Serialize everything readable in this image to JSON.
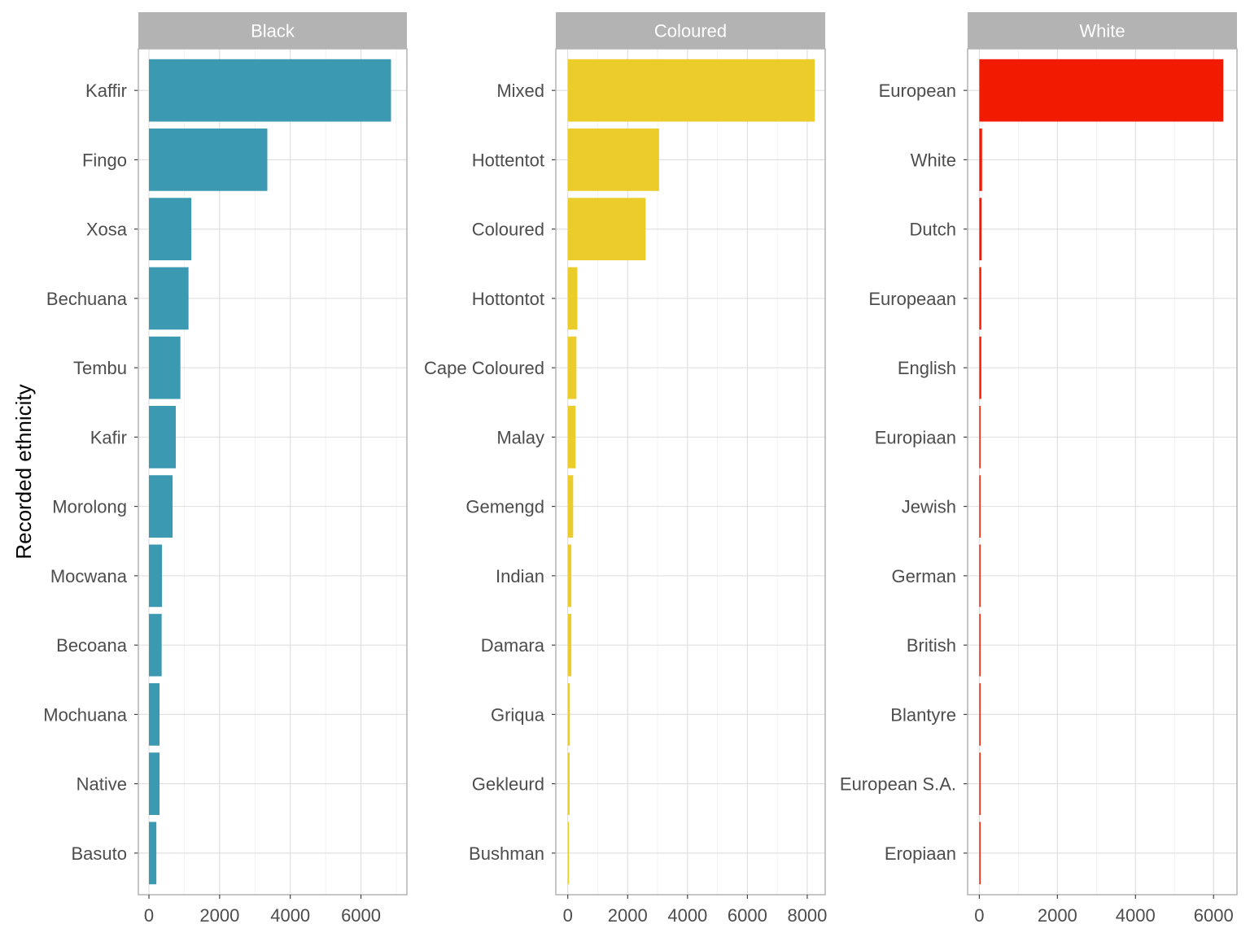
{
  "chart_data": {
    "type": "bar",
    "orientation": "horizontal",
    "ylabel": "Recorded ethnicity",
    "xlabel": "",
    "grid": true,
    "facets": [
      {
        "name": "Black",
        "color": "#3b9ab2",
        "xlim": [
          -300,
          7300
        ],
        "xticks": [
          0,
          2000,
          4000,
          6000
        ],
        "categories": [
          "Kaffir",
          "Fingo",
          "Xosa",
          "Bechuana",
          "Tembu",
          "Kafir",
          "Morolong",
          "Mocwana",
          "Becoana",
          "Mochuana",
          "Native",
          "Basuto"
        ],
        "values": [
          6850,
          3350,
          1200,
          1120,
          890,
          760,
          670,
          370,
          360,
          300,
          300,
          210
        ]
      },
      {
        "name": "Coloured",
        "color": "#ebcc2a",
        "xlim": [
          -400,
          8600
        ],
        "xticks": [
          0,
          2000,
          4000,
          6000,
          8000
        ],
        "categories": [
          "Mixed",
          "Hottentot",
          "Coloured",
          "Hottontot",
          "Cape Coloured",
          "Malay",
          "Gemengd",
          "Indian",
          "Damara",
          "Griqua",
          "Gekleurd",
          "Bushman"
        ],
        "values": [
          8250,
          3050,
          2600,
          320,
          290,
          260,
          180,
          120,
          120,
          70,
          60,
          30
        ]
      },
      {
        "name": "White",
        "color": "#f21a00",
        "xlim": [
          -300,
          6600
        ],
        "xticks": [
          0,
          2000,
          4000,
          6000
        ],
        "categories": [
          "European",
          "White",
          "Dutch",
          "Europeaan",
          "English",
          "Europiaan",
          "Jewish",
          "German",
          "British",
          "Blantyre",
          "European S.A.",
          "Eropiaan"
        ],
        "values": [
          6250,
          70,
          60,
          50,
          50,
          30,
          25,
          20,
          20,
          15,
          15,
          10
        ]
      }
    ]
  }
}
